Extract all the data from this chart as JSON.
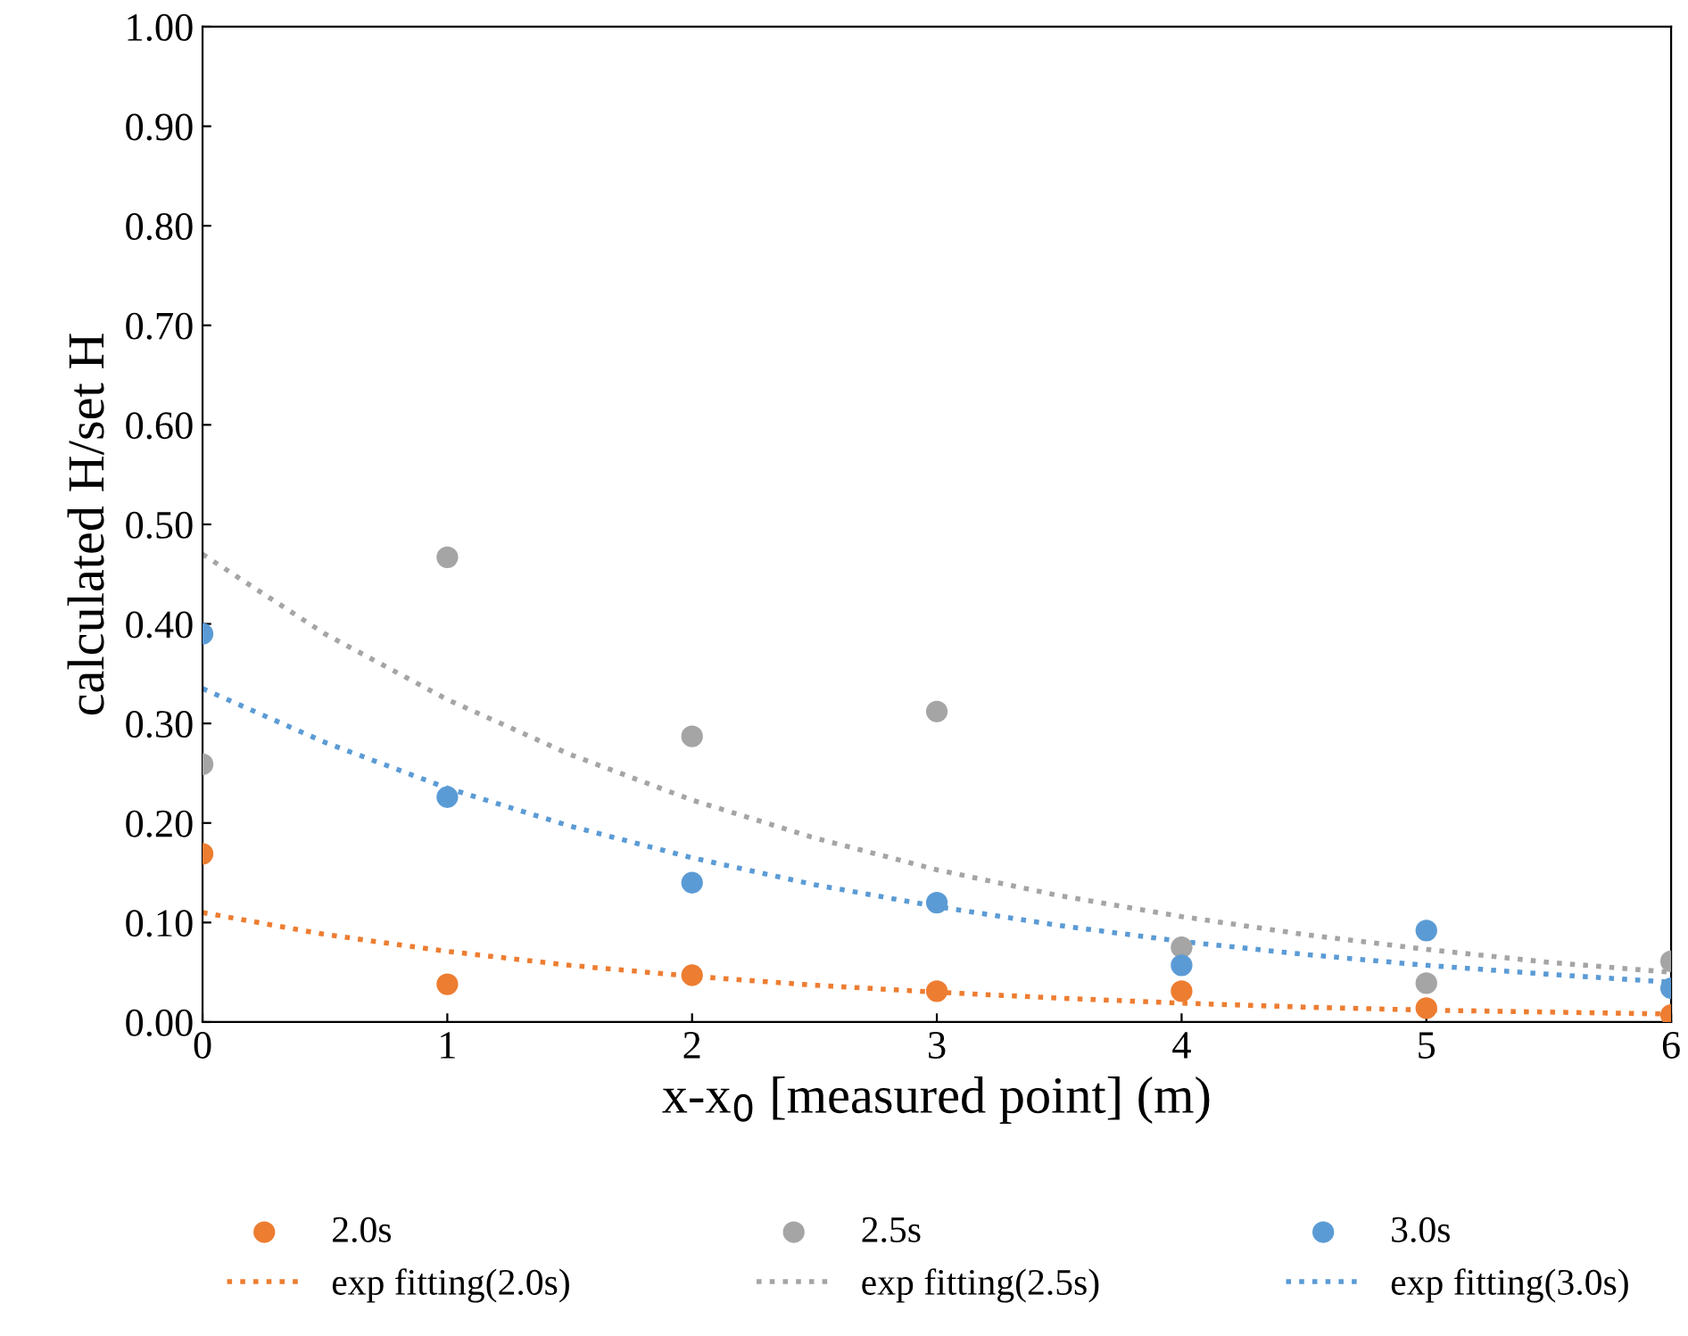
{
  "chart_data": {
    "type": "scatter",
    "xlabel": "x-x$_{0}$ [measured point] (m)",
    "ylabel": "calculated H/set H",
    "xlim": [
      0,
      6
    ],
    "xticks": [
      0,
      1,
      2,
      3,
      4,
      5,
      6
    ],
    "ylim": [
      0,
      1
    ],
    "yticks": [
      {
        "value": 0,
        "label": "0.00"
      },
      {
        "value": 0.1,
        "label": "0.10"
      },
      {
        "value": 0.2,
        "label": "0.20"
      },
      {
        "value": 0.3,
        "label": "0.30"
      },
      {
        "value": 0.4,
        "label": "0.40"
      },
      {
        "value": 0.5,
        "label": "0.50"
      },
      {
        "value": 0.6,
        "label": "0.60"
      },
      {
        "value": 0.7,
        "label": "0.70"
      },
      {
        "value": 0.8,
        "label": "0.80"
      },
      {
        "value": 0.9,
        "label": "0.90"
      },
      {
        "value": 1,
        "label": "1.00"
      }
    ],
    "grid": false,
    "legend": "bottom",
    "marker": "circle",
    "series": [
      {
        "name": "2.0s",
        "color": "#ed7d31",
        "x": [
          0,
          1,
          2,
          3,
          4,
          5,
          6
        ],
        "values": [
          0.169,
          0.038,
          0.047,
          0.031,
          0.031,
          0.014,
          0.007
        ]
      },
      {
        "name": "2.5s",
        "color": "#a5a5a5",
        "x": [
          0,
          1,
          2,
          3,
          4,
          5,
          6
        ],
        "values": [
          0.259,
          0.467,
          0.287,
          0.312,
          0.075,
          0.039,
          0.061
        ]
      },
      {
        "name": "3.0s",
        "color": "#5b9bd5",
        "x": [
          0,
          1,
          2,
          3,
          4,
          5,
          6
        ],
        "values": [
          0.39,
          0.226,
          0.14,
          0.12,
          0.057,
          0.092,
          0.034
        ]
      },
      {
        "name": "exp fitting(2.0s)",
        "type": "line",
        "line_style": "dotted",
        "marker": "none",
        "color": "#ed7d31",
        "x": [
          0,
          0.5,
          1,
          1.5,
          2,
          2.5,
          3,
          3.5,
          4,
          4.5,
          5,
          5.5,
          6
        ],
        "values": [
          0.11,
          0.088,
          0.071,
          0.057,
          0.046,
          0.037,
          0.03,
          0.024,
          0.019,
          0.015,
          0.012,
          0.01,
          0.008
        ]
      },
      {
        "name": "exp fitting(2.5s)",
        "type": "line",
        "line_style": "dotted",
        "marker": "none",
        "color": "#a5a5a5",
        "x": [
          0,
          0.5,
          1,
          1.5,
          2,
          2.5,
          3,
          3.5,
          4,
          4.5,
          5,
          5.5,
          6
        ],
        "values": [
          0.47,
          0.39,
          0.324,
          0.269,
          0.223,
          0.185,
          0.153,
          0.127,
          0.106,
          0.088,
          0.073,
          0.06,
          0.05
        ]
      },
      {
        "name": "exp fitting(3.0s)",
        "type": "line",
        "line_style": "dotted",
        "marker": "none",
        "color": "#5b9bd5",
        "x": [
          0,
          0.5,
          1,
          1.5,
          2,
          2.5,
          3,
          3.5,
          4,
          4.5,
          5,
          5.5,
          6
        ],
        "values": [
          0.335,
          0.281,
          0.235,
          0.197,
          0.165,
          0.138,
          0.116,
          0.097,
          0.081,
          0.068,
          0.057,
          0.048,
          0.04
        ]
      }
    ]
  }
}
